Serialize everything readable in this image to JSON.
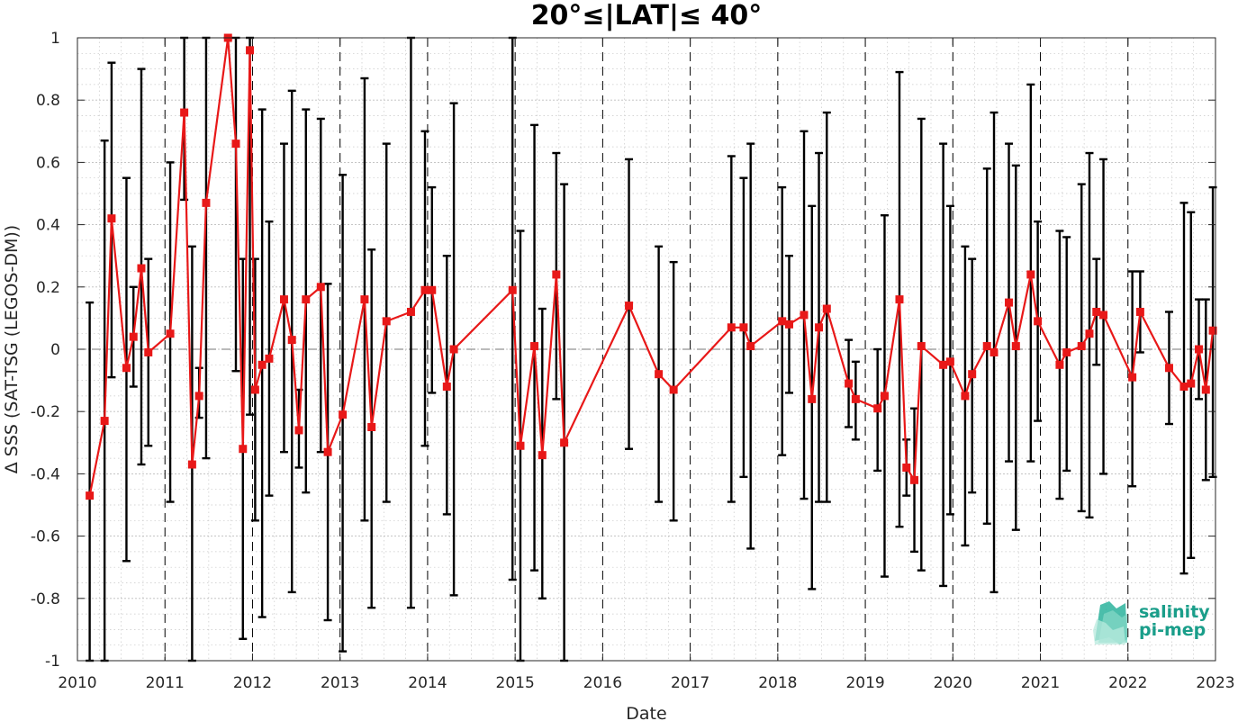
{
  "chart_data": {
    "type": "line",
    "title": "20°≤|LAT|≤ 40°",
    "xlabel": "Date",
    "ylabel": "Δ SSS (SAT-TSG (LEGOS-DM))",
    "xlim": [
      2010,
      2023
    ],
    "ylim": [
      -1,
      1
    ],
    "x_ticks": [
      "2010",
      "2011",
      "2012",
      "2013",
      "2014",
      "2015",
      "2016",
      "2017",
      "2018",
      "2019",
      "2020",
      "2021",
      "2022",
      "2023"
    ],
    "y_ticks": [
      "-1",
      "-0.8",
      "-0.6",
      "-0.4",
      "-0.2",
      "0",
      "0.2",
      "0.4",
      "0.6",
      "0.8",
      "1"
    ],
    "grid": true,
    "reference_line": 0,
    "series": [
      {
        "color": "#e81818",
        "marker": "square",
        "points": [
          {
            "x": 2010.14,
            "y": -0.47,
            "lo": -1.0,
            "hi": 0.15
          },
          {
            "x": 2010.31,
            "y": -0.23,
            "lo": -1.0,
            "hi": 0.67
          },
          {
            "x": 2010.39,
            "y": 0.42,
            "lo": -0.09,
            "hi": 0.92
          },
          {
            "x": 2010.56,
            "y": -0.06,
            "lo": -0.68,
            "hi": 0.55
          },
          {
            "x": 2010.64,
            "y": 0.04,
            "lo": -0.12,
            "hi": 0.2
          },
          {
            "x": 2010.73,
            "y": 0.26,
            "lo": -0.37,
            "hi": 0.9
          },
          {
            "x": 2010.81,
            "y": -0.01,
            "lo": -0.31,
            "hi": 0.29
          },
          {
            "x": 2011.06,
            "y": 0.05,
            "lo": -0.49,
            "hi": 0.6
          },
          {
            "x": 2011.22,
            "y": 0.76,
            "lo": 0.48,
            "hi": 1.0
          },
          {
            "x": 2011.31,
            "y": -0.37,
            "lo": -1.0,
            "hi": 0.33
          },
          {
            "x": 2011.39,
            "y": -0.15,
            "lo": -0.22,
            "hi": -0.06
          },
          {
            "x": 2011.47,
            "y": 0.47,
            "lo": -0.35,
            "hi": 1.0
          },
          {
            "x": 2011.72,
            "y": 1.0,
            "lo": 1.0,
            "hi": 1.0
          },
          {
            "x": 2011.81,
            "y": 0.66,
            "lo": -0.07,
            "hi": 1.0
          },
          {
            "x": 2011.89,
            "y": -0.32,
            "lo": -0.93,
            "hi": 0.29
          },
          {
            "x": 2011.97,
            "y": 0.96,
            "lo": -0.21,
            "hi": 1.0
          },
          {
            "x": 2012.03,
            "y": -0.13,
            "lo": -0.55,
            "hi": 0.29
          },
          {
            "x": 2012.11,
            "y": -0.05,
            "lo": -0.86,
            "hi": 0.77
          },
          {
            "x": 2012.19,
            "y": -0.03,
            "lo": -0.47,
            "hi": 0.41
          },
          {
            "x": 2012.36,
            "y": 0.16,
            "lo": -0.33,
            "hi": 0.66
          },
          {
            "x": 2012.45,
            "y": 0.03,
            "lo": -0.78,
            "hi": 0.83
          },
          {
            "x": 2012.53,
            "y": -0.26,
            "lo": -0.38,
            "hi": -0.13
          },
          {
            "x": 2012.61,
            "y": 0.16,
            "lo": -0.46,
            "hi": 0.77
          },
          {
            "x": 2012.78,
            "y": 0.2,
            "lo": -0.33,
            "hi": 0.74
          },
          {
            "x": 2012.86,
            "y": -0.33,
            "lo": -0.87,
            "hi": 0.21
          },
          {
            "x": 2013.03,
            "y": -0.21,
            "lo": -0.97,
            "hi": 0.56
          },
          {
            "x": 2013.28,
            "y": 0.16,
            "lo": -0.55,
            "hi": 0.87
          },
          {
            "x": 2013.36,
            "y": -0.25,
            "lo": -0.83,
            "hi": 0.32
          },
          {
            "x": 2013.53,
            "y": 0.09,
            "lo": -0.49,
            "hi": 0.66
          },
          {
            "x": 2013.81,
            "y": 0.12,
            "lo": -0.83,
            "hi": 1.0
          },
          {
            "x": 2013.97,
            "y": 0.19,
            "lo": -0.31,
            "hi": 0.7
          },
          {
            "x": 2014.05,
            "y": 0.19,
            "lo": -0.14,
            "hi": 0.52
          },
          {
            "x": 2014.22,
            "y": -0.12,
            "lo": -0.53,
            "hi": 0.3
          },
          {
            "x": 2014.3,
            "y": 0.0,
            "lo": -0.79,
            "hi": 0.79
          },
          {
            "x": 2014.97,
            "y": 0.19,
            "lo": -0.74,
            "hi": 1.0
          },
          {
            "x": 2015.06,
            "y": -0.31,
            "lo": -1.0,
            "hi": 0.38
          },
          {
            "x": 2015.22,
            "y": 0.01,
            "lo": -0.71,
            "hi": 0.72
          },
          {
            "x": 2015.31,
            "y": -0.34,
            "lo": -0.8,
            "hi": 0.13
          },
          {
            "x": 2015.47,
            "y": 0.24,
            "lo": -0.16,
            "hi": 0.63
          },
          {
            "x": 2015.56,
            "y": -0.3,
            "lo": -1.0,
            "hi": 0.53
          },
          {
            "x": 2016.3,
            "y": 0.14,
            "lo": -0.32,
            "hi": 0.61
          },
          {
            "x": 2016.64,
            "y": -0.08,
            "lo": -0.49,
            "hi": 0.33
          },
          {
            "x": 2016.81,
            "y": -0.13,
            "lo": -0.55,
            "hi": 0.28
          },
          {
            "x": 2017.47,
            "y": 0.07,
            "lo": -0.49,
            "hi": 0.62
          },
          {
            "x": 2017.61,
            "y": 0.07,
            "lo": -0.41,
            "hi": 0.55
          },
          {
            "x": 2017.69,
            "y": 0.01,
            "lo": -0.64,
            "hi": 0.66
          },
          {
            "x": 2018.05,
            "y": 0.09,
            "lo": -0.34,
            "hi": 0.52
          },
          {
            "x": 2018.13,
            "y": 0.08,
            "lo": -0.14,
            "hi": 0.3
          },
          {
            "x": 2018.3,
            "y": 0.11,
            "lo": -0.48,
            "hi": 0.7
          },
          {
            "x": 2018.39,
            "y": -0.16,
            "lo": -0.77,
            "hi": 0.46
          },
          {
            "x": 2018.47,
            "y": 0.07,
            "lo": -0.49,
            "hi": 0.63
          },
          {
            "x": 2018.56,
            "y": 0.13,
            "lo": -0.49,
            "hi": 0.76
          },
          {
            "x": 2018.81,
            "y": -0.11,
            "lo": -0.25,
            "hi": 0.03
          },
          {
            "x": 2018.89,
            "y": -0.16,
            "lo": -0.29,
            "hi": -0.04
          },
          {
            "x": 2019.14,
            "y": -0.19,
            "lo": -0.39,
            "hi": 0.0
          },
          {
            "x": 2019.22,
            "y": -0.15,
            "lo": -0.73,
            "hi": 0.43
          },
          {
            "x": 2019.39,
            "y": 0.16,
            "lo": -0.57,
            "hi": 0.89
          },
          {
            "x": 2019.47,
            "y": -0.38,
            "lo": -0.47,
            "hi": -0.29
          },
          {
            "x": 2019.56,
            "y": -0.42,
            "lo": -0.65,
            "hi": -0.19
          },
          {
            "x": 2019.64,
            "y": 0.01,
            "lo": -0.71,
            "hi": 0.74
          },
          {
            "x": 2019.89,
            "y": -0.05,
            "lo": -0.76,
            "hi": 0.66
          },
          {
            "x": 2019.97,
            "y": -0.04,
            "lo": -0.53,
            "hi": 0.46
          },
          {
            "x": 2020.14,
            "y": -0.15,
            "lo": -0.63,
            "hi": 0.33
          },
          {
            "x": 2020.22,
            "y": -0.08,
            "lo": -0.46,
            "hi": 0.29
          },
          {
            "x": 2020.39,
            "y": 0.01,
            "lo": -0.56,
            "hi": 0.58
          },
          {
            "x": 2020.47,
            "y": -0.01,
            "lo": -0.78,
            "hi": 0.76
          },
          {
            "x": 2020.64,
            "y": 0.15,
            "lo": -0.36,
            "hi": 0.66
          },
          {
            "x": 2020.72,
            "y": 0.01,
            "lo": -0.58,
            "hi": 0.59
          },
          {
            "x": 2020.89,
            "y": 0.24,
            "lo": -0.36,
            "hi": 0.85
          },
          {
            "x": 2020.97,
            "y": 0.09,
            "lo": -0.23,
            "hi": 0.41
          },
          {
            "x": 2021.22,
            "y": -0.05,
            "lo": -0.48,
            "hi": 0.38
          },
          {
            "x": 2021.3,
            "y": -0.01,
            "lo": -0.39,
            "hi": 0.36
          },
          {
            "x": 2021.47,
            "y": 0.01,
            "lo": -0.52,
            "hi": 0.53
          },
          {
            "x": 2021.56,
            "y": 0.05,
            "lo": -0.54,
            "hi": 0.63
          },
          {
            "x": 2021.64,
            "y": 0.12,
            "lo": -0.05,
            "hi": 0.29
          },
          {
            "x": 2021.72,
            "y": 0.11,
            "lo": -0.4,
            "hi": 0.61
          },
          {
            "x": 2022.05,
            "y": -0.09,
            "lo": -0.44,
            "hi": 0.25
          },
          {
            "x": 2022.14,
            "y": 0.12,
            "lo": -0.01,
            "hi": 0.25
          },
          {
            "x": 2022.47,
            "y": -0.06,
            "lo": -0.24,
            "hi": 0.12
          },
          {
            "x": 2022.64,
            "y": -0.12,
            "lo": -0.72,
            "hi": 0.47
          },
          {
            "x": 2022.72,
            "y": -0.11,
            "lo": -0.67,
            "hi": 0.44
          },
          {
            "x": 2022.81,
            "y": 0.0,
            "lo": -0.16,
            "hi": 0.16
          },
          {
            "x": 2022.89,
            "y": -0.13,
            "lo": -0.42,
            "hi": 0.16
          },
          {
            "x": 2022.97,
            "y": 0.06,
            "lo": -0.41,
            "hi": 0.52
          }
        ]
      }
    ]
  },
  "logo": {
    "line1": "salinity",
    "line2": "pi-mep",
    "color": "#1a9e8a"
  }
}
